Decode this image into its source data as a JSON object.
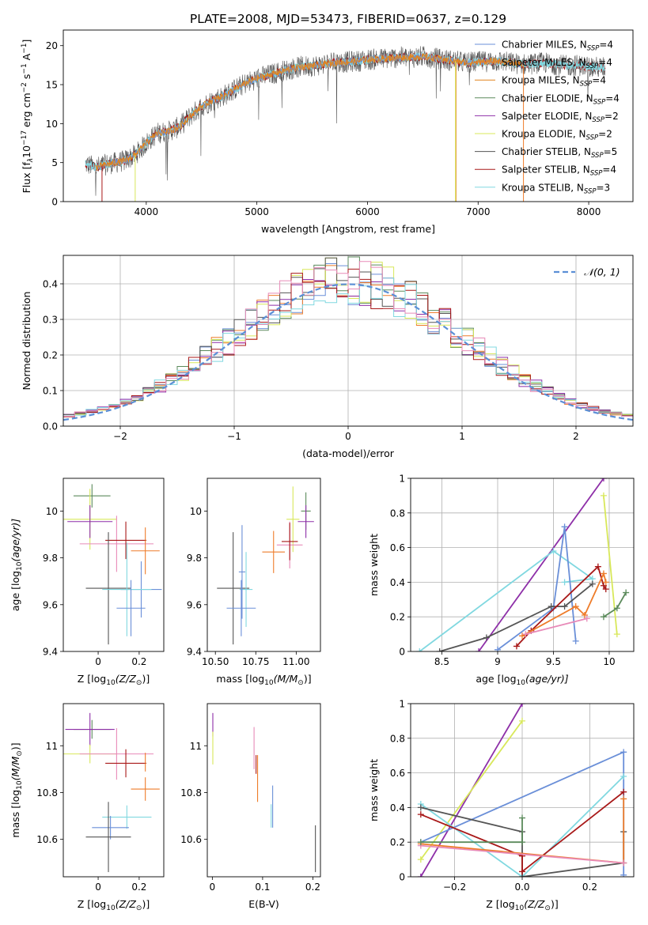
{
  "figure_title": "PLATE=2008, MJD=53473, FIBERID=0637, z=0.129",
  "colors": {
    "chabrier_miles": "#6a8fd8",
    "salpeter_miles": "#ee7c2a",
    "kroupa_miles": "#e2841c",
    "chabrier_elodie": "#5b8a5b",
    "salpeter_elodie": "#8e2fa8",
    "kroupa_elodie": "#d8e85a",
    "chabrier_stelib": "#555555",
    "salpeter_stelib": "#a81818",
    "kroupa_stelib": "#80d8e0",
    "pink": "#e88ab8",
    "normal_curve": "#5b8fd6"
  },
  "chart_data": [
    {
      "id": "spectrum",
      "type": "line",
      "xlabel": "wavelength [Angstrom, rest frame]",
      "ylabel": "Flux [f",
      "ylabel_lambda": "λ",
      "ylabel_rest": "10",
      "ylabel_exp": "−17",
      "ylabel_unit": " erg cm",
      "ylabel_unit_exp": "−2",
      "ylabel_unit2": " s",
      "ylabel_unit2_exp": "−1",
      "ylabel_unit3": " A",
      "ylabel_unit3_exp": "−1",
      "ylabel_close": "]",
      "xlim": [
        3250,
        8400
      ],
      "ylim": [
        0,
        22
      ],
      "xticks": [
        4000,
        5000,
        6000,
        7000,
        8000
      ],
      "yticks": [
        0,
        5,
        10,
        15,
        20
      ],
      "continuum": {
        "x": [
          3450,
          3550,
          3650,
          3800,
          3900,
          4000,
          4100,
          4200,
          4300,
          4400,
          4500,
          4600,
          4700,
          4800,
          4900,
          5000,
          5100,
          5200,
          5300,
          5400,
          5500,
          5600,
          5700,
          5800,
          5900,
          6000,
          6100,
          6200,
          6300,
          6400,
          6500,
          6600,
          6700,
          6800,
          6900,
          7000,
          7100,
          7200,
          7300,
          7400,
          7500,
          7600,
          7700,
          7800,
          7900,
          8000,
          8100
        ],
        "y": [
          4.8,
          4.4,
          4.8,
          5.2,
          6.0,
          7.5,
          8.8,
          9.0,
          9.6,
          11.0,
          12.2,
          13.0,
          13.6,
          14.4,
          15.2,
          15.8,
          16.2,
          16.6,
          17.0,
          17.3,
          17.4,
          17.6,
          17.8,
          17.9,
          18.0,
          18.2,
          18.3,
          18.4,
          18.5,
          18.5,
          18.6,
          18.4,
          18.2,
          18.0,
          17.8,
          17.9,
          18.0,
          18.0,
          17.8,
          17.6,
          17.7,
          17.8,
          17.6,
          17.4,
          17.5,
          17.3,
          17.2
        ]
      },
      "legend": {
        "placement": "top-right",
        "entries": [
          {
            "label": "Chabrier MILES, N",
            "sub": "SSP",
            "tail": "=4",
            "color": "#6a8fd8"
          },
          {
            "label": "Salpeter MILES, N",
            "sub": "SSP",
            "tail": "=4",
            "color": "#ee7c2a"
          },
          {
            "label": "Kroupa MILES, N",
            "sub": "SSP",
            "tail": "=4",
            "color": "#e2841c"
          },
          {
            "label": "Chabrier ELODIE, N",
            "sub": "SSP",
            "tail": "=4",
            "color": "#5b8a5b"
          },
          {
            "label": "Salpeter ELODIE, N",
            "sub": "SSP",
            "tail": "=2",
            "color": "#8e2fa8"
          },
          {
            "label": "Kroupa ELODIE, N",
            "sub": "SSP",
            "tail": "=2",
            "color": "#d8e85a"
          },
          {
            "label": "Chabrier STELIB, N",
            "sub": "SSP",
            "tail": "=5",
            "color": "#555555"
          },
          {
            "label": "Salpeter STELIB, N",
            "sub": "SSP",
            "tail": "=4",
            "color": "#a81818"
          },
          {
            "label": "Kroupa STELIB, N",
            "sub": "SSP",
            "tail": "=3",
            "color": "#80d8e0"
          }
        ]
      }
    },
    {
      "id": "residuals",
      "type": "histogram",
      "xlabel": "(data-model)/error",
      "ylabel": "Normed distribution",
      "xlim": [
        -2.5,
        2.5
      ],
      "ylim": [
        0,
        0.48
      ],
      "xticks": [
        -2,
        -1,
        0,
        1,
        2
      ],
      "xtick_labels": [
        "−2",
        "−1",
        "0",
        "1",
        "2"
      ],
      "yticks": [
        0.0,
        0.1,
        0.2,
        0.3,
        0.4
      ],
      "ytick_labels": [
        "0.0",
        "0.1",
        "0.2",
        "0.3",
        "0.4"
      ],
      "grid": true,
      "bin_width": 0.1,
      "legend": {
        "placement": "top-right",
        "label": "𝒩(0, 1)"
      }
    },
    {
      "id": "age_vs_Z",
      "type": "errorbar",
      "xlabel": "Z [log",
      "xlabel_sub": "10",
      "xlabel_rest": "(Z/Z",
      "xlabel_sun": "⊙",
      "xlabel_close": ")]",
      "ylabel": "age  [log",
      "ylabel_sub": "10",
      "ylabel_rest": "(age/yr)]",
      "xlim": [
        -0.17,
        0.32
      ],
      "ylim": [
        9.4,
        10.14
      ],
      "xticks": [
        0.0,
        0.2
      ],
      "yticks": [
        9.4,
        9.6,
        9.8,
        10.0
      ],
      "points": [
        {
          "x": -0.03,
          "y": 10.065,
          "xerr": 0.09,
          "yerr": 0.05,
          "color": "#5b8a5b"
        },
        {
          "x": -0.04,
          "y": 9.965,
          "xerr": 0.13,
          "yerr": 0.13,
          "color": "#d8e85a"
        },
        {
          "x": -0.04,
          "y": 9.955,
          "xerr": 0.11,
          "yerr": 0.07,
          "color": "#8e2fa8"
        },
        {
          "x": 0.09,
          "y": 9.86,
          "xerr": 0.18,
          "yerr": 0.12,
          "color": "#e88ab8"
        },
        {
          "x": 0.135,
          "y": 9.875,
          "xerr": 0.1,
          "yerr": 0.08,
          "color": "#a81818"
        },
        {
          "x": 0.23,
          "y": 9.83,
          "xerr": 0.07,
          "yerr": 0.1,
          "color": "#ee7c2a"
        },
        {
          "x": 0.21,
          "y": 9.665,
          "xerr": 0.1,
          "yerr": 0.12,
          "color": "#6a8fd8"
        },
        {
          "x": 0.05,
          "y": 9.67,
          "xerr": 0.11,
          "yerr": 0.24,
          "color": "#555555"
        },
        {
          "x": 0.14,
          "y": 9.665,
          "xerr": 0.12,
          "yerr": 0.2,
          "color": "#80d8e0"
        },
        {
          "x": 0.16,
          "y": 9.585,
          "xerr": 0.07,
          "yerr": 0.12,
          "color": "#6a8fd8"
        }
      ]
    },
    {
      "id": "age_vs_mass",
      "type": "errorbar",
      "xlabel": "mass [log",
      "xlabel_sub": "10",
      "xlabel_rest": "(M/M",
      "xlabel_sun": "⊙",
      "xlabel_close": ")]",
      "xlim": [
        10.45,
        11.15
      ],
      "ylim": [
        9.4,
        10.14
      ],
      "xticks": [
        10.5,
        10.75,
        11.0
      ],
      "xtick_labels": [
        "10.50",
        "10.75",
        "11.00"
      ],
      "yticks": [
        9.4,
        9.6,
        9.8,
        10.0
      ],
      "points": [
        {
          "x": 11.06,
          "y": 10.0,
          "xerr": 0.03,
          "yerr": 0.08,
          "color": "#5b8a5b"
        },
        {
          "x": 11.06,
          "y": 9.955,
          "xerr": 0.05,
          "yerr": 0.07,
          "color": "#8e2fa8"
        },
        {
          "x": 10.98,
          "y": 9.965,
          "xerr": 0.04,
          "yerr": 0.14,
          "color": "#d8e85a"
        },
        {
          "x": 10.96,
          "y": 9.855,
          "xerr": 0.08,
          "yerr": 0.1,
          "color": "#e88ab8"
        },
        {
          "x": 10.96,
          "y": 9.87,
          "xerr": 0.05,
          "yerr": 0.08,
          "color": "#a81818"
        },
        {
          "x": 10.86,
          "y": 9.825,
          "xerr": 0.07,
          "yerr": 0.09,
          "color": "#ee7c2a"
        },
        {
          "x": 10.61,
          "y": 9.67,
          "xerr": 0.1,
          "yerr": 0.24,
          "color": "#555555"
        },
        {
          "x": 10.69,
          "y": 9.665,
          "xerr": 0.04,
          "yerr": 0.16,
          "color": "#80d8e0"
        },
        {
          "x": 10.66,
          "y": 9.585,
          "xerr": 0.09,
          "yerr": 0.12,
          "color": "#6a8fd8"
        },
        {
          "x": 10.665,
          "y": 9.74,
          "xerr": 0.02,
          "yerr": 0.2,
          "color": "#6a8fd8"
        }
      ]
    },
    {
      "id": "weight_vs_age",
      "type": "line",
      "xlabel": "age  [log",
      "xlabel_sub": "10",
      "xlabel_rest": "(age/yr)]",
      "ylabel": "mass weight",
      "xlim": [
        8.22,
        10.22
      ],
      "ylim": [
        0,
        1.0
      ],
      "xticks": [
        8.5,
        9.0,
        9.5,
        10.0
      ],
      "yticks": [
        0.0,
        0.2,
        0.4,
        0.6,
        0.8,
        1.0
      ],
      "grid": true,
      "series": [
        {
          "color": "#8e2fa8",
          "x": [
            8.83,
            9.95
          ],
          "y": [
            0.0,
            1.0
          ]
        },
        {
          "color": "#d8e85a",
          "x": [
            9.95,
            10.07
          ],
          "y": [
            0.9,
            0.1
          ]
        },
        {
          "color": "#80d8e0",
          "x": [
            8.3,
            9.5,
            9.85,
            9.6
          ],
          "y": [
            0.0,
            0.58,
            0.42,
            0.4
          ]
        },
        {
          "color": "#6a8fd8",
          "x": [
            9.0,
            9.5,
            9.6,
            9.7
          ],
          "y": [
            0.01,
            0.25,
            0.72,
            0.06
          ]
        },
        {
          "color": "#555555",
          "x": [
            8.48,
            8.9,
            9.48,
            9.6,
            9.85
          ],
          "y": [
            0.0,
            0.08,
            0.26,
            0.26,
            0.39
          ]
        },
        {
          "color": "#a81818",
          "x": [
            9.17,
            9.3,
            9.9,
            9.95,
            9.97
          ],
          "y": [
            0.03,
            0.12,
            0.49,
            0.38,
            0.36
          ]
        },
        {
          "color": "#ee7c2a",
          "x": [
            9.22,
            9.7,
            9.78,
            9.95,
            9.97
          ],
          "y": [
            0.09,
            0.26,
            0.21,
            0.45,
            0.4
          ]
        },
        {
          "color": "#e88ab8",
          "x": [
            9.25,
            9.8
          ],
          "y": [
            0.1,
            0.19
          ]
        },
        {
          "color": "#5b8a5b",
          "x": [
            9.95,
            10.07,
            10.15
          ],
          "y": [
            0.2,
            0.25,
            0.34
          ]
        }
      ]
    },
    {
      "id": "mass_vs_Z",
      "type": "errorbar",
      "xlabel": "Z [log",
      "xlabel_sub": "10",
      "xlabel_rest": "(Z/Z",
      "xlabel_sun": "⊙",
      "xlabel_close": ")]",
      "ylabel": "mass [log",
      "ylabel_sub": "10",
      "ylabel_rest": "(M/M",
      "ylabel_sun": "⊙",
      "ylabel_close": ")]",
      "xlim": [
        -0.17,
        0.32
      ],
      "ylim": [
        10.44,
        11.18
      ],
      "xticks": [
        0.0,
        0.2
      ],
      "yticks": [
        10.6,
        10.8,
        11.0
      ],
      "points": [
        {
          "x": -0.03,
          "y": 11.07,
          "xerr": 0.09,
          "yerr": 0.04,
          "color": "#5b8a5b"
        },
        {
          "x": -0.04,
          "y": 11.07,
          "xerr": 0.12,
          "yerr": 0.07,
          "color": "#8e2fa8"
        },
        {
          "x": -0.04,
          "y": 10.965,
          "xerr": 0.13,
          "yerr": 0.04,
          "color": "#d8e85a"
        },
        {
          "x": 0.09,
          "y": 10.965,
          "xerr": 0.18,
          "yerr": 0.11,
          "color": "#e88ab8"
        },
        {
          "x": 0.135,
          "y": 10.925,
          "xerr": 0.1,
          "yerr": 0.06,
          "color": "#a81818"
        },
        {
          "x": 0.23,
          "y": 10.815,
          "xerr": 0.07,
          "yerr": 0.05,
          "color": "#ee7c2a"
        },
        {
          "x": 0.23,
          "y": 10.93,
          "xerr": 0.0,
          "yerr": 0.04,
          "color": "#ee7c2a"
        },
        {
          "x": 0.14,
          "y": 10.695,
          "xerr": 0.12,
          "yerr": 0.05,
          "color": "#80d8e0"
        },
        {
          "x": 0.06,
          "y": 10.65,
          "xerr": 0.09,
          "yerr": 0.05,
          "color": "#6a8fd8"
        },
        {
          "x": 0.05,
          "y": 10.61,
          "xerr": 0.11,
          "yerr": 0.15,
          "color": "#555555"
        }
      ]
    },
    {
      "id": "mass_vs_EBV",
      "type": "errorbar",
      "xlabel": "E(B-V)",
      "xlim": [
        -0.01,
        0.215
      ],
      "ylim": [
        10.44,
        11.18
      ],
      "xticks": [
        0.0,
        0.1,
        0.2
      ],
      "yticks": [
        10.6,
        10.8,
        11.0
      ],
      "points": [
        {
          "x": 0.001,
          "y": 11.09,
          "xerr": 0.0,
          "yerr": 0.05,
          "color": "#8e2fa8"
        },
        {
          "x": 0.001,
          "y": 10.99,
          "xerr": 0.0,
          "yerr": 0.07,
          "color": "#d8e85a"
        },
        {
          "x": 0.083,
          "y": 10.99,
          "xerr": 0.0,
          "yerr": 0.09,
          "color": "#e88ab8"
        },
        {
          "x": 0.087,
          "y": 10.92,
          "xerr": 0.0,
          "yerr": 0.04,
          "color": "#a81818"
        },
        {
          "x": 0.09,
          "y": 10.86,
          "xerr": 0.0,
          "yerr": 0.1,
          "color": "#ee7c2a"
        },
        {
          "x": 0.12,
          "y": 10.74,
          "xerr": 0.0,
          "yerr": 0.09,
          "color": "#6a8fd8"
        },
        {
          "x": 0.117,
          "y": 10.7,
          "xerr": 0.0,
          "yerr": 0.05,
          "color": "#80d8e0"
        },
        {
          "x": 0.205,
          "y": 10.56,
          "xerr": 0.0,
          "yerr": 0.1,
          "color": "#555555"
        }
      ]
    },
    {
      "id": "weight_vs_Z",
      "type": "line",
      "xlabel": "Z [log",
      "xlabel_sub": "10",
      "xlabel_rest": "(Z/Z",
      "xlabel_sun": "⊙",
      "xlabel_close": ")]",
      "ylabel": "mass weight",
      "xlim": [
        -0.33,
        0.33
      ],
      "ylim": [
        0,
        1.0
      ],
      "xticks": [
        -0.2,
        0.0,
        0.2
      ],
      "xtick_labels": [
        "−0.2",
        "0.0",
        "0.2"
      ],
      "yticks": [
        0.0,
        0.2,
        0.4,
        0.6,
        0.8,
        1.0
      ],
      "grid": true,
      "series": [
        {
          "color": "#8e2fa8",
          "x": [
            -0.3,
            0.0
          ],
          "y": [
            0.0,
            1.0
          ]
        },
        {
          "color": "#d8e85a",
          "x": [
            -0.3,
            0.0
          ],
          "y": [
            0.1,
            0.9
          ]
        },
        {
          "color": "#6a8fd8",
          "x": [
            -0.3,
            0.3,
            0.3
          ],
          "y": [
            0.2,
            0.72,
            0.01
          ]
        },
        {
          "color": "#80d8e0",
          "x": [
            -0.3,
            0.0,
            0.3
          ],
          "y": [
            0.42,
            0.0,
            0.58
          ]
        },
        {
          "color": "#555555",
          "x": [
            -0.3,
            0.0,
            0.0,
            0.3,
            0.3
          ],
          "y": [
            0.4,
            0.26,
            0.0,
            0.08,
            0.26
          ]
        },
        {
          "color": "#a81818",
          "x": [
            -0.3,
            0.0,
            0.0,
            0.3
          ],
          "y": [
            0.36,
            0.12,
            0.03,
            0.49
          ]
        },
        {
          "color": "#ee7c2a",
          "x": [
            -0.3,
            0.3,
            0.3
          ],
          "y": [
            0.19,
            0.08,
            0.45
          ]
        },
        {
          "color": "#e88ab8",
          "x": [
            -0.3,
            0.3
          ],
          "y": [
            0.18,
            0.08
          ]
        },
        {
          "color": "#5b8a5b",
          "x": [
            -0.3,
            0.0,
            0.0
          ],
          "y": [
            0.2,
            0.2,
            0.34
          ]
        }
      ]
    }
  ]
}
